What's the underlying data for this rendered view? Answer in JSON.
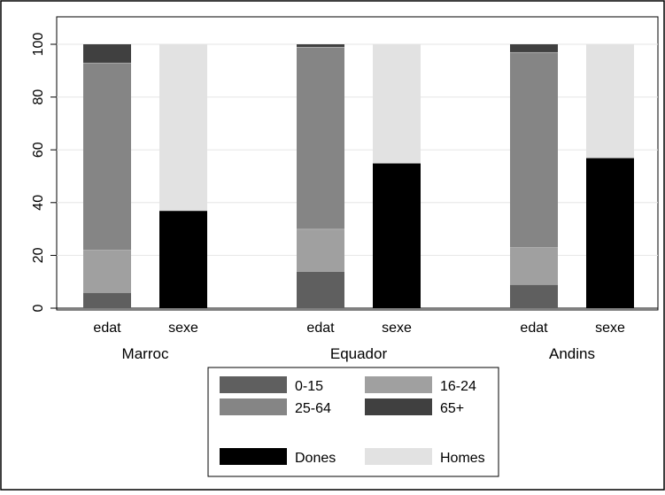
{
  "chart_data": {
    "type": "bar",
    "stacked": true,
    "yticks": [
      "0",
      "20",
      "40",
      "60",
      "80",
      "100"
    ],
    "ylim": [
      0,
      100
    ],
    "grid": true,
    "groups": [
      {
        "label": "Marroc",
        "bars": [
          {
            "label": "edat",
            "segments": [
              {
                "key": "0-15",
                "value": 6
              },
              {
                "key": "16-24",
                "value": 16
              },
              {
                "key": "25-64",
                "value": 71
              },
              {
                "key": "65+",
                "value": 7
              }
            ]
          },
          {
            "label": "sexe",
            "segments": [
              {
                "key": "Dones",
                "value": 37
              },
              {
                "key": "Homes",
                "value": 63
              }
            ]
          }
        ]
      },
      {
        "label": "Equador",
        "bars": [
          {
            "label": "edat",
            "segments": [
              {
                "key": "0-15",
                "value": 14
              },
              {
                "key": "16-24",
                "value": 16
              },
              {
                "key": "25-64",
                "value": 69
              },
              {
                "key": "65+",
                "value": 1
              }
            ]
          },
          {
            "label": "sexe",
            "segments": [
              {
                "key": "Dones",
                "value": 55
              },
              {
                "key": "Homes",
                "value": 45
              }
            ]
          }
        ]
      },
      {
        "label": "Andins",
        "bars": [
          {
            "label": "edat",
            "segments": [
              {
                "key": "0-15",
                "value": 9
              },
              {
                "key": "16-24",
                "value": 14
              },
              {
                "key": "25-64",
                "value": 74
              },
              {
                "key": "65+",
                "value": 3
              }
            ]
          },
          {
            "label": "sexe",
            "segments": [
              {
                "key": "Dones",
                "value": 57
              },
              {
                "key": "Homes",
                "value": 43
              }
            ]
          }
        ]
      }
    ],
    "legend": {
      "placement": "bottom-center",
      "items": [
        {
          "key": "0-15",
          "label": "0-15",
          "color": "#5f5f5f"
        },
        {
          "key": "16-24",
          "label": "16-24",
          "color": "#a0a0a0"
        },
        {
          "key": "25-64",
          "label": "25-64",
          "color": "#858585"
        },
        {
          "key": "65+",
          "label": "65+",
          "color": "#404040"
        },
        {
          "key": "Dones",
          "label": "Dones",
          "color": "#000000"
        },
        {
          "key": "Homes",
          "label": "Homes",
          "color": "#e2e2e2"
        }
      ]
    }
  }
}
